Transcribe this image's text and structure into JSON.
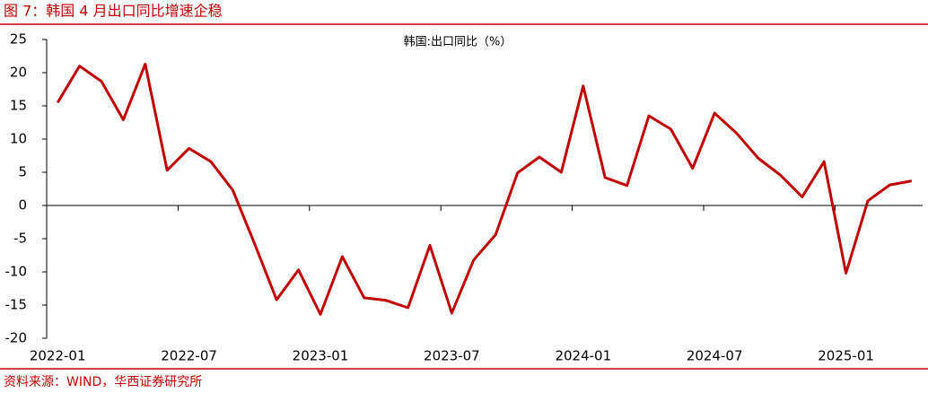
{
  "chart_data": {
    "type": "line",
    "title": "图 7：韩国 4 月出口同比增速企稳",
    "source": "资料来源：WIND，华西证券研究所",
    "categories": [
      "2022-01",
      null,
      null,
      null,
      null,
      null,
      "2022-07",
      null,
      null,
      null,
      null,
      null,
      "2023-01",
      null,
      null,
      null,
      null,
      null,
      "2023-07",
      null,
      null,
      null,
      null,
      null,
      "2024-01",
      null,
      null,
      null,
      null,
      null,
      "2024-07",
      null,
      null,
      null,
      null,
      null,
      "2025-01",
      null,
      null,
      null
    ],
    "series": [
      {
        "name": "韩国:出口同比（%）",
        "color": "#c00000",
        "values": [
          15.5,
          21.0,
          18.7,
          12.9,
          21.3,
          5.3,
          8.6,
          6.6,
          2.3,
          -5.8,
          -14.2,
          -9.7,
          -16.4,
          -7.7,
          -13.9,
          -14.3,
          -15.4,
          -6.0,
          -16.2,
          -8.2,
          -4.4,
          4.9,
          7.3,
          5.0,
          18.0,
          4.2,
          3.0,
          13.5,
          11.5,
          5.6,
          13.9,
          10.9,
          7.1,
          4.6,
          1.3,
          6.6,
          -10.2,
          0.7,
          3.1,
          3.7
        ]
      }
    ],
    "ylim": [
      -20,
      25
    ],
    "yticks": [
      -20,
      -15,
      -10,
      -5,
      0,
      5,
      10,
      15,
      20,
      25
    ],
    "grid": false
  }
}
